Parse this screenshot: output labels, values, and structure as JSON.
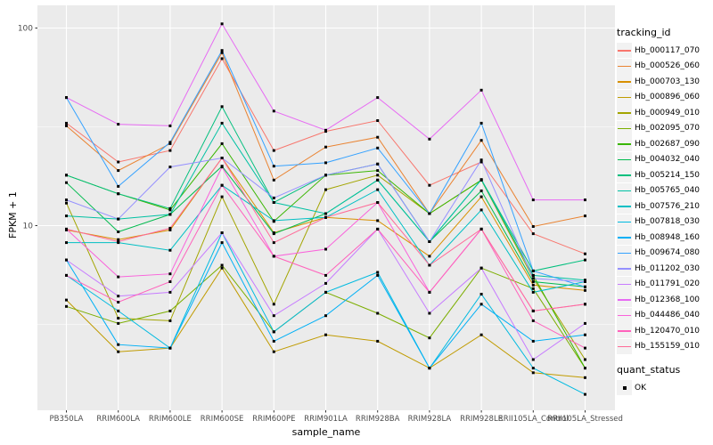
{
  "chart_data": {
    "type": "line",
    "title": "",
    "xlabel": "sample_name",
    "ylabel": "FPKM + 1",
    "yscale": "log10",
    "ylim": [
      1.15,
      130
    ],
    "y_ticks": [
      100,
      10
    ],
    "y_minor": [
      31.62,
      3.162
    ],
    "grid": true,
    "panel_background": "#EBEBEB",
    "grid_color": "#FFFFFF",
    "point_color": "#000000",
    "legend_position": "right",
    "legend_title": "tracking_id",
    "quant_legend_title": "quant_status",
    "quant_status_label": "OK",
    "x": [
      "PB350LA",
      "RRIM600LA",
      "RRIM600LE",
      "RRIM600SE",
      "RRIM600PE",
      "RRIM901LA",
      "RRIM928BA",
      "RRIM928LA",
      "RRIM928LE",
      "RRII105LA_Control",
      "RRII105LA_Stressed"
    ],
    "series": [
      {
        "name": "Hb_000117_070",
        "color": "#F8766D",
        "values": [
          33,
          21,
          24,
          70,
          24,
          30,
          34,
          16,
          21,
          9.1,
          7.2
        ]
      },
      {
        "name": "Hb_000526_060",
        "color": "#EA8331",
        "values": [
          32,
          19,
          26,
          75,
          17,
          25,
          28,
          11.5,
          27,
          9.9,
          11.2
        ]
      },
      {
        "name": "Hb_000703_130",
        "color": "#D89000",
        "values": [
          9.5,
          8.5,
          9.5,
          22,
          9.2,
          11,
          10.6,
          7.0,
          14,
          5.0,
          4.7
        ]
      },
      {
        "name": "Hb_000896_060",
        "color": "#C09B00",
        "values": [
          4.2,
          2.3,
          2.4,
          6.1,
          2.3,
          2.8,
          2.6,
          1.9,
          2.8,
          1.8,
          1.7
        ]
      },
      {
        "name": "Hb_000949_010",
        "color": "#A3A500",
        "values": [
          13,
          3.4,
          3.3,
          14,
          4.0,
          15.2,
          18,
          11.5,
          17,
          5.4,
          2.1
        ]
      },
      {
        "name": "Hb_002095_070",
        "color": "#7CAE00",
        "values": [
          3.9,
          3.2,
          3.7,
          6.3,
          2.9,
          4.6,
          3.6,
          2.7,
          6.1,
          4.8,
          1.9
        ]
      },
      {
        "name": "Hb_002687_090",
        "color": "#39B600",
        "values": [
          18,
          14.5,
          12,
          26,
          10.5,
          18,
          19,
          11.5,
          17,
          5.6,
          1.9
        ]
      },
      {
        "name": "Hb_004032_040",
        "color": "#00BB4E",
        "values": [
          16.5,
          9.3,
          11.4,
          20,
          9.1,
          11.5,
          17,
          8.3,
          15,
          5.2,
          4.9
        ]
      },
      {
        "name": "Hb_005214_150",
        "color": "#00BF7D",
        "values": [
          18,
          14.5,
          12.2,
          40,
          13.1,
          18,
          20.5,
          8.3,
          17.1,
          5.9,
          6.7
        ]
      },
      {
        "name": "Hb_005765_040",
        "color": "#00C1A3",
        "values": [
          11.2,
          10.8,
          11.4,
          33,
          13.1,
          11.5,
          17,
          8.3,
          17.1,
          5.6,
          5.3
        ]
      },
      {
        "name": "Hb_007576_210",
        "color": "#00BFC4",
        "values": [
          8.2,
          8.2,
          7.5,
          16,
          10.6,
          11,
          15.2,
          6.3,
          12,
          4.6,
          5.2
        ]
      },
      {
        "name": "Hb_007818_030",
        "color": "#00BAE0",
        "values": [
          5.6,
          3.7,
          2.4,
          9.2,
          2.9,
          4.6,
          5.8,
          1.9,
          4.5,
          1.9,
          1.4
        ]
      },
      {
        "name": "Hb_008948_160",
        "color": "#00B0F6",
        "values": [
          6.7,
          2.5,
          2.4,
          8.2,
          2.6,
          3.5,
          5.6,
          1.9,
          4.0,
          2.6,
          2.8
        ]
      },
      {
        "name": "Hb_009674_080",
        "color": "#35A2FF",
        "values": [
          44.5,
          15.8,
          26.4,
          77,
          20,
          20.8,
          24.7,
          11.5,
          33,
          5.9,
          4.9
        ]
      },
      {
        "name": "Hb_011202_030",
        "color": "#9590FF",
        "values": [
          13.5,
          10.8,
          19.8,
          22,
          13.8,
          18,
          20.5,
          8.3,
          21.5,
          5.4,
          5.2
        ]
      },
      {
        "name": "Hb_011791_020",
        "color": "#C77CFF",
        "values": [
          6.7,
          4.4,
          4.6,
          9.2,
          3.5,
          5.1,
          9.6,
          3.6,
          6.1,
          2.1,
          3.2
        ]
      },
      {
        "name": "Hb_012368_100",
        "color": "#E76BF3",
        "values": [
          44.5,
          32.6,
          32,
          105,
          38,
          30.4,
          44.5,
          27.4,
          48.5,
          13.5,
          13.5
        ]
      },
      {
        "name": "Hb_044486_040",
        "color": "#FA62DB",
        "values": [
          9.6,
          5.5,
          5.7,
          19.8,
          7.0,
          7.6,
          13.1,
          4.6,
          9.6,
          3.7,
          4.0
        ]
      },
      {
        "name": "Hb_120470_010",
        "color": "#FF62BC",
        "values": [
          5.6,
          4.1,
          5.2,
          16,
          7.0,
          5.6,
          9.6,
          4.6,
          9.6,
          3.3,
          2.4
        ]
      },
      {
        "name": "Hb_155159_010",
        "color": "#FF6A98",
        "values": [
          9.6,
          8.3,
          9.7,
          22,
          8.2,
          11,
          13.1,
          6.3,
          9.6,
          3.7,
          4.0
        ]
      }
    ]
  }
}
